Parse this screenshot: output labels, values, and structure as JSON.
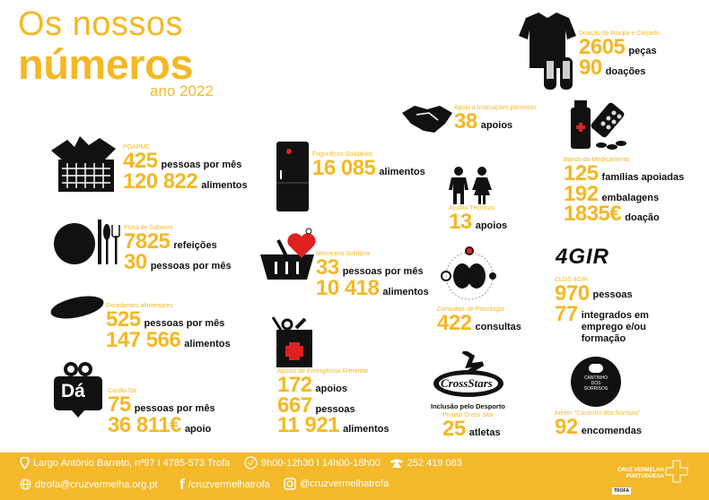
{
  "title": {
    "line1": "Os nossos",
    "line2": "números",
    "year": "ano 2022"
  },
  "colors": {
    "accent": "#f4b824",
    "text": "#111111",
    "footer": "#f3b92a"
  },
  "blocks": [
    {
      "id": "roupa",
      "label": "Doação de Roupa e Calçado",
      "icon": "shirt-shoes-icon",
      "rows": [
        {
          "num": "2605",
          "unit": "peças"
        },
        {
          "num": "90",
          "unit": "doações"
        }
      ]
    },
    {
      "id": "instituicoes",
      "label": "Apoio a Instituições parceiras",
      "icon": "handshake-icon",
      "rows": [
        {
          "num": "38",
          "unit": "apoios"
        }
      ]
    },
    {
      "id": "medicamento",
      "label": "Banco do Medicamento",
      "icon": "medicine-icon",
      "rows": [
        {
          "num": "125",
          "unit": "famílias apoiadas"
        },
        {
          "num": "192",
          "unit": "embalagens"
        },
        {
          "num": "1835€",
          "unit": "doação"
        }
      ]
    },
    {
      "id": "poapmc",
      "label": "POAPMC",
      "icon": "food-basket-icon",
      "rows": [
        {
          "num": "425",
          "unit": "pessoas por mês"
        },
        {
          "num": "120 822",
          "unit": "alimentos"
        }
      ]
    },
    {
      "id": "frigorificos",
      "label": "Frigoríficos Solidários",
      "icon": "fridge-icon",
      "rows": [
        {
          "num": "16 085",
          "unit": "alimentos"
        }
      ]
    },
    {
      "id": "ajudas",
      "label": "Ajudas Técnicas",
      "icon": "people-icon",
      "rows": [
        {
          "num": "13",
          "unit": "apoios"
        }
      ]
    },
    {
      "id": "sabores",
      "label": "Porta de Sabores",
      "icon": "plate-cutlery-icon",
      "rows": [
        {
          "num": "7825",
          "unit": "refeições"
        },
        {
          "num": "30",
          "unit": "pessoas por mês"
        }
      ]
    },
    {
      "id": "mercearia",
      "label": "Mercearia Solidária",
      "icon": "shopping-basket-heart-icon",
      "rows": [
        {
          "num": "33",
          "unit": "pessoas por mês"
        },
        {
          "num": "10 418",
          "unit": "alimentos"
        }
      ]
    },
    {
      "id": "psicologia",
      "label": "Consultas de Psicologia",
      "icon": "brain-icon",
      "rows": [
        {
          "num": "422",
          "unit": "consultas"
        }
      ]
    },
    {
      "id": "agir",
      "label": "CLDS 4GIR",
      "icon": "4gir-logo",
      "rows": [
        {
          "num": "970",
          "unit": "pessoas"
        },
        {
          "num": "77",
          "unit": "integrados em emprego e/ou formação"
        }
      ]
    },
    {
      "id": "excedentes",
      "label": "Excedentes alimentares",
      "icon": "bread-icon",
      "rows": [
        {
          "num": "525",
          "unit": "pessoas por mês"
        },
        {
          "num": "147 566",
          "unit": "alimentos"
        }
      ]
    },
    {
      "id": "emergencia",
      "label": "Apoios de Emergência Alimentar",
      "icon": "emergency-bag-icon",
      "rows": [
        {
          "num": "172",
          "unit": "apoios"
        },
        {
          "num": "667",
          "unit": "pessoas"
        },
        {
          "num": "11 921",
          "unit": "alimentos"
        }
      ]
    },
    {
      "id": "crossstar",
      "label": "Projeto Cross Star",
      "icon": "cross-stars-logo",
      "rows": [
        {
          "num": "25",
          "unit": "atletas"
        }
      ]
    },
    {
      "id": "atelier",
      "label": "Atelier \"Cantinho dos Sorrisos\"",
      "icon": "cantinho-logo",
      "rows": [
        {
          "num": "92",
          "unit": "encomendas"
        }
      ]
    },
    {
      "id": "cartao",
      "label": "Cartão Dá",
      "icon": "gift-da-icon",
      "rows": [
        {
          "num": "75",
          "unit": "pessoas por mês"
        },
        {
          "num": "36 811€",
          "unit": "apoio"
        }
      ]
    }
  ],
  "crossstar_heading": "Inclusão pelo Desporto",
  "logos": {
    "agir": "4GIR",
    "cross": "CrossStars",
    "cantinho": "CANTINHO DOS SORRISOS",
    "da": "Dá"
  },
  "footer": {
    "address": "Largo António Barreto, nº97 I 4785-573 Trofa",
    "hours": "9h00-12h30  I  14h00-18h00",
    "phone": "252 419 083",
    "email": "dtrofa@cruzvermelha.org.pt",
    "facebook": "/cruzvermelhatrofa",
    "instagram": "@cruzvermelhatrofa",
    "org_line1": "CRUZ VERMELHA",
    "org_line2": "PORTUGUESA",
    "org_branch": "TROFA"
  }
}
